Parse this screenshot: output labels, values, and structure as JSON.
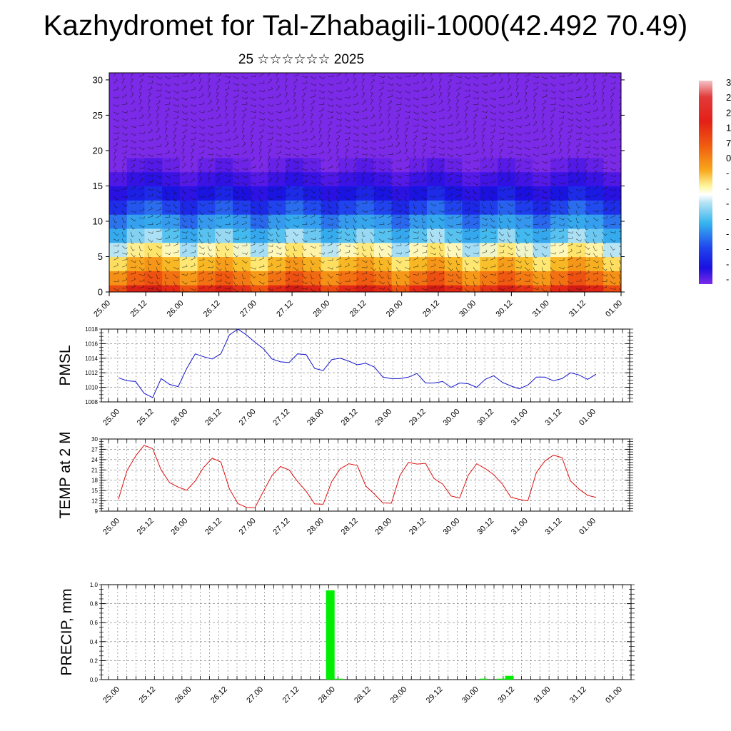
{
  "title": "Kazhydromet for Tal-Zhabagili-1000(42.492 70.49)",
  "subtitle": "25 ☆☆☆☆☆☆ 2025",
  "colors": {
    "pmsl_line": "#1515cc",
    "temp_line": "#dd1111",
    "precip_bar": "#00ee00",
    "wind_barbs": "#111111"
  },
  "time_labels": [
    "25.00",
    "25.12",
    "26.00",
    "26.12",
    "27.00",
    "27.12",
    "28.00",
    "28.12",
    "29.00",
    "29.12",
    "30.00",
    "30.12",
    "31.00",
    "31.12",
    "01.00"
  ],
  "colorbar": {
    "labels": [
      "3",
      "2",
      "2",
      "1",
      "7",
      "0",
      "-",
      "-",
      "-",
      "-",
      "-",
      "-",
      "-",
      "-"
    ]
  },
  "chart_data": [
    {
      "type": "heatmap",
      "name": "temperature cross-section with wind barbs",
      "x_labels": [
        "25.00",
        "25.12",
        "26.00",
        "26.12",
        "27.00",
        "27.12",
        "28.00",
        "28.12",
        "29.00",
        "29.12",
        "30.00",
        "30.12",
        "31.00",
        "31.12",
        "01.00"
      ],
      "ylim": [
        0,
        31
      ],
      "y_ticks": [
        0,
        5,
        10,
        15,
        20,
        25,
        30
      ],
      "levels": [
        0,
        2,
        4,
        6,
        8,
        10,
        12,
        14,
        16,
        18,
        20,
        22,
        24,
        26,
        28,
        30
      ],
      "column_values_surface": [
        22,
        28,
        30,
        26,
        21,
        26,
        29,
        25,
        21,
        26,
        30,
        27,
        22,
        26,
        29,
        26,
        21,
        26,
        30,
        26,
        21,
        25,
        29,
        25,
        21,
        26,
        30,
        27,
        22
      ]
    },
    {
      "type": "line",
      "ylabel": "PMSL",
      "ylim": [
        1008,
        1018
      ],
      "y_ticks": [
        1008,
        1010,
        1012,
        1014,
        1016,
        1018
      ],
      "x_labels": [
        "25.00",
        "25.12",
        "26.00",
        "26.12",
        "27.00",
        "27.12",
        "28.00",
        "28.12",
        "29.00",
        "29.12",
        "30.00",
        "30.12",
        "31.00",
        "31.12",
        "01.00"
      ],
      "values": [
        1011.3,
        1010.9,
        1010.8,
        1009.2,
        1008.6,
        1011.2,
        1010.4,
        1010.1,
        1012.6,
        1014.6,
        1014.2,
        1013.9,
        1014.6,
        1017.2,
        1018.0,
        1017.2,
        1016.2,
        1015.3,
        1013.9,
        1013.5,
        1013.4,
        1014.6,
        1014.5,
        1012.6,
        1012.3,
        1013.8,
        1014.0,
        1013.6,
        1013.1,
        1013.3,
        1012.8,
        1011.4,
        1011.2,
        1011.2,
        1011.4,
        1011.9,
        1010.6,
        1010.6,
        1010.8,
        1010.0,
        1010.6,
        1010.5,
        1010.0,
        1011.1,
        1011.6,
        1010.7,
        1010.2,
        1009.8,
        1010.3,
        1011.4,
        1011.4,
        1010.9,
        1011.2,
        1012.0,
        1011.7,
        1011.1,
        1011.8
      ]
    },
    {
      "type": "line",
      "ylabel": "TEMP at 2 M",
      "ylim": [
        9,
        30
      ],
      "y_ticks": [
        9,
        12,
        15,
        18,
        21,
        24,
        27,
        30
      ],
      "x_labels": [
        "25.00",
        "25.12",
        "26.00",
        "26.12",
        "27.00",
        "27.12",
        "28.00",
        "28.12",
        "29.00",
        "29.12",
        "30.00",
        "30.12",
        "31.00",
        "31.12",
        "01.00"
      ],
      "values": [
        12.5,
        20.8,
        25.0,
        28.2,
        27.2,
        21.0,
        17.3,
        16.0,
        15.1,
        17.8,
        21.8,
        24.4,
        23.3,
        15.5,
        11.2,
        10.1,
        10.0,
        14.8,
        19.4,
        22.0,
        21.0,
        17.6,
        14.8,
        11.1,
        11.0,
        17.6,
        21.3,
        22.8,
        22.3,
        16.3,
        14.0,
        11.4,
        11.3,
        19.4,
        23.2,
        22.7,
        22.9,
        18.5,
        16.9,
        13.4,
        12.8,
        19.4,
        22.8,
        21.4,
        19.6,
        16.9,
        13.1,
        12.4,
        12.0,
        20.3,
        23.6,
        25.3,
        24.6,
        17.8,
        15.4,
        13.6,
        13.0
      ]
    },
    {
      "type": "bar",
      "ylabel": "PRECIP, mm",
      "ylim": [
        0,
        1.0
      ],
      "y_ticks": [
        "0.0",
        "0.2",
        "0.4",
        "0.6",
        "0.8",
        "1.0"
      ],
      "x_labels": [
        "25.00",
        "25.12",
        "26.00",
        "26.12",
        "27.00",
        "27.12",
        "28.00",
        "28.12",
        "29.00",
        "29.12",
        "30.00",
        "30.12",
        "31.00",
        "31.12",
        "01.00"
      ],
      "bar_steps": [
        24,
        25,
        42,
        44,
        45
      ],
      "bar_values": [
        0.94,
        0.01,
        0.01,
        0.01,
        0.04
      ]
    }
  ]
}
